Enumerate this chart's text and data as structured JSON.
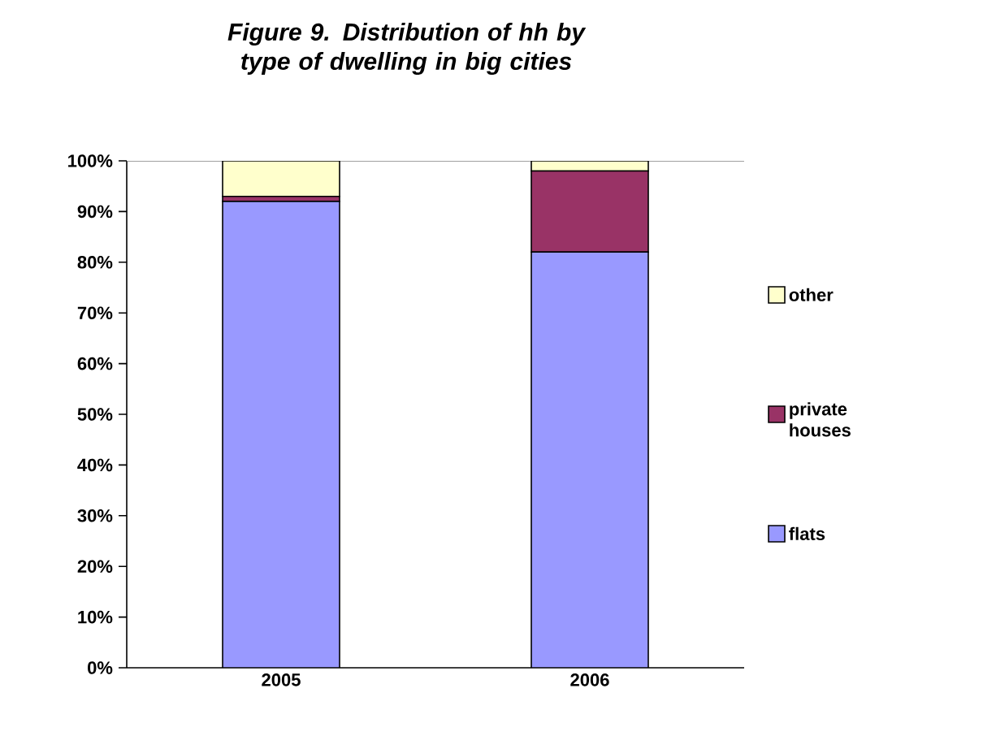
{
  "chart_data": {
    "type": "bar",
    "title": "Figure 9. Distribution of hh by type of dwelling in big cities",
    "categories": [
      "2005",
      "2006"
    ],
    "stacked": true,
    "legend": "right",
    "series": [
      {
        "name": "flats",
        "color": "#9999ff",
        "values": [
          92,
          82
        ]
      },
      {
        "name": "private houses",
        "color": "#993366",
        "values": [
          1,
          16
        ]
      },
      {
        "name": "other",
        "color": "#ffffcc",
        "values": [
          7,
          2
        ]
      }
    ],
    "ylim": [
      0,
      100
    ],
    "yticks": [
      {
        "value": 0,
        "label": "0%"
      },
      {
        "value": 10,
        "label": "10%"
      },
      {
        "value": 20,
        "label": "20%"
      },
      {
        "value": 30,
        "label": "30%"
      },
      {
        "value": 40,
        "label": "40%"
      },
      {
        "value": 50,
        "label": "50%"
      },
      {
        "value": 60,
        "label": "60%"
      },
      {
        "value": 70,
        "label": "70%"
      },
      {
        "value": 80,
        "label": "80%"
      },
      {
        "value": 90,
        "label": "90%"
      },
      {
        "value": 100,
        "label": "100%"
      }
    ]
  }
}
